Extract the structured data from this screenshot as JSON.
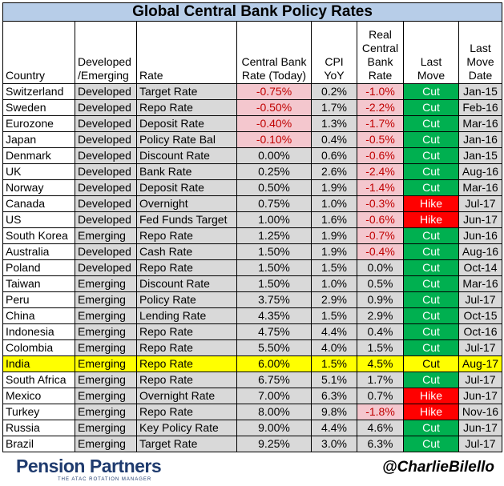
{
  "chart_data": {
    "type": "table",
    "title": "Global Central Bank Policy Rates",
    "columns": [
      "Country",
      "Developed /Emerging",
      "Rate",
      "Central Bank Rate (Today)",
      "CPI YoY",
      "Real Central Bank Rate",
      "Last Move",
      "Last Move Date"
    ],
    "rows": [
      [
        "Switzerland",
        "Developed",
        "Target Rate",
        "-0.75%",
        "0.2%",
        "-1.0%",
        "Cut",
        "Jan-15"
      ],
      [
        "Sweden",
        "Developed",
        "Repo Rate",
        "-0.50%",
        "1.7%",
        "-2.2%",
        "Cut",
        "Feb-16"
      ],
      [
        "Eurozone",
        "Developed",
        "Deposit Rate",
        "-0.40%",
        "1.3%",
        "-1.7%",
        "Cut",
        "Mar-16"
      ],
      [
        "Japan",
        "Developed",
        "Policy Rate Bal",
        "-0.10%",
        "0.4%",
        "-0.5%",
        "Cut",
        "Jan-16"
      ],
      [
        "Denmark",
        "Developed",
        "Discount Rate",
        "0.00%",
        "0.6%",
        "-0.6%",
        "Cut",
        "Jan-15"
      ],
      [
        "UK",
        "Developed",
        "Bank Rate",
        "0.25%",
        "2.6%",
        "-2.4%",
        "Cut",
        "Aug-16"
      ],
      [
        "Norway",
        "Developed",
        "Deposit Rate",
        "0.50%",
        "1.9%",
        "-1.4%",
        "Cut",
        "Mar-16"
      ],
      [
        "Canada",
        "Developed",
        "Overnight",
        "0.75%",
        "1.0%",
        "-0.3%",
        "Hike",
        "Jul-17"
      ],
      [
        "US",
        "Developed",
        "Fed Funds Target",
        "1.00%",
        "1.6%",
        "-0.6%",
        "Hike",
        "Jun-17"
      ],
      [
        "South Korea",
        "Emerging",
        "Repo Rate",
        "1.25%",
        "1.9%",
        "-0.7%",
        "Cut",
        "Jun-16"
      ],
      [
        "Australia",
        "Developed",
        "Cash Rate",
        "1.50%",
        "1.9%",
        "-0.4%",
        "Cut",
        "Aug-16"
      ],
      [
        "Poland",
        "Developed",
        "Repo Rate",
        "1.50%",
        "1.5%",
        "0.0%",
        "Cut",
        "Oct-14"
      ],
      [
        "Taiwan",
        "Emerging",
        "Discount Rate",
        "1.50%",
        "1.0%",
        "0.5%",
        "Cut",
        "Mar-16"
      ],
      [
        "Peru",
        "Emerging",
        "Policy Rate",
        "3.75%",
        "2.9%",
        "0.9%",
        "Cut",
        "Jul-17"
      ],
      [
        "China",
        "Emerging",
        "Lending Rate",
        "4.35%",
        "1.5%",
        "2.9%",
        "Cut",
        "Oct-15"
      ],
      [
        "Indonesia",
        "Emerging",
        "Repo Rate",
        "4.75%",
        "4.4%",
        "0.4%",
        "Cut",
        "Oct-16"
      ],
      [
        "Colombia",
        "Emerging",
        "Repo Rate",
        "5.50%",
        "4.0%",
        "1.5%",
        "Cut",
        "Jul-17"
      ],
      [
        "India",
        "Emerging",
        "Repo Rate",
        "6.00%",
        "1.5%",
        "4.5%",
        "Cut",
        "Aug-17"
      ],
      [
        "South Africa",
        "Emerging",
        "Repo Rate",
        "6.75%",
        "5.1%",
        "1.7%",
        "Cut",
        "Jul-17"
      ],
      [
        "Mexico",
        "Emerging",
        "Overnight Rate",
        "7.00%",
        "6.3%",
        "0.7%",
        "Hike",
        "Jun-17"
      ],
      [
        "Turkey",
        "Emerging",
        "Repo Rate",
        "8.00%",
        "9.8%",
        "-1.8%",
        "Hike",
        "Nov-16"
      ],
      [
        "Russia",
        "Emerging",
        "Key Policy Rate",
        "9.00%",
        "4.4%",
        "4.6%",
        "Cut",
        "Jun-17"
      ],
      [
        "Brazil",
        "Emerging",
        "Target Rate",
        "9.25%",
        "3.0%",
        "6.3%",
        "Cut",
        "Jul-17"
      ]
    ],
    "highlight_row": "India",
    "colors": {
      "title_bg": "#b7cde8",
      "cell_gray": "#d9d9d9",
      "negative_rate_bg": "#f4c7ce",
      "negative_text": "#c00000",
      "cut": "#00b050",
      "hike": "#ff0000",
      "highlight": "#ffff00"
    }
  },
  "footer": {
    "logo": "Pension Partners",
    "logo_tagline": "THE ATAC ROTATION MANAGER",
    "handle": "@CharlieBilello"
  }
}
